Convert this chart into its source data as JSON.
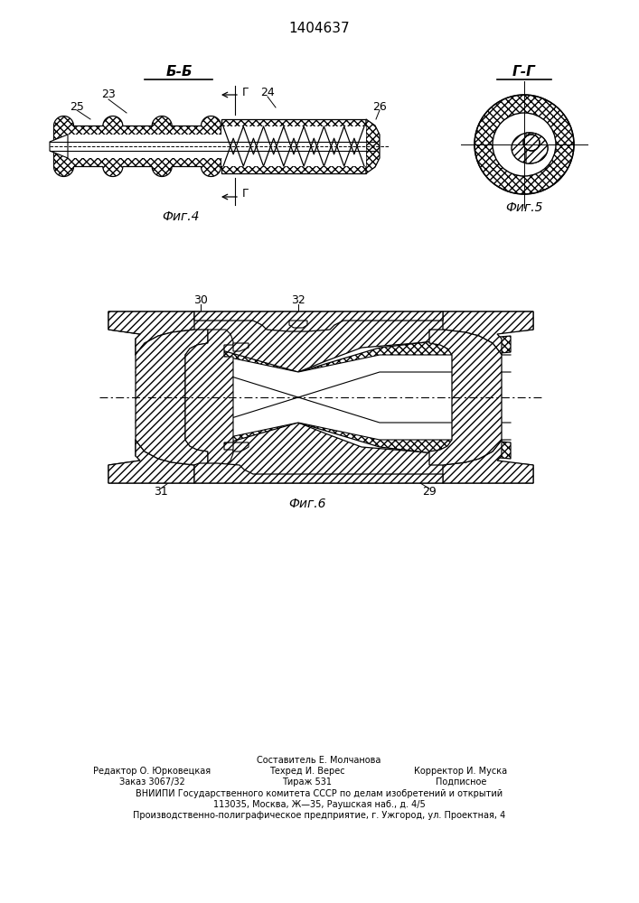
{
  "title": "1404637",
  "bg_color": "#ffffff",
  "fig4_label": "Фиг.4",
  "fig5_label": "Фиг.5",
  "fig6_label": "Фиг.6",
  "section_bb": "Б-Б",
  "section_gg": "Г-Г",
  "footer_line1": "Составитель Е. Молчанова",
  "footer_line2a": "Редактор О. Юрковецкая",
  "footer_line2b": "Техред И. Верес",
  "footer_line2c": "Корректор И. Муска",
  "footer_line3a": "Заказ 3067/32",
  "footer_line3b": "Тираж 531",
  "footer_line3c": "Подписное",
  "footer_line4": "ВНИИПИ Государственного комитета СССР по делам изобретений и открытий",
  "footer_line5": "113035, Москва, Ж—35, Раушская наб., д. 4/5",
  "footer_line6": "Производственно-полиграфическое предприятие, г. Ужгород, ул. Проектная, 4"
}
